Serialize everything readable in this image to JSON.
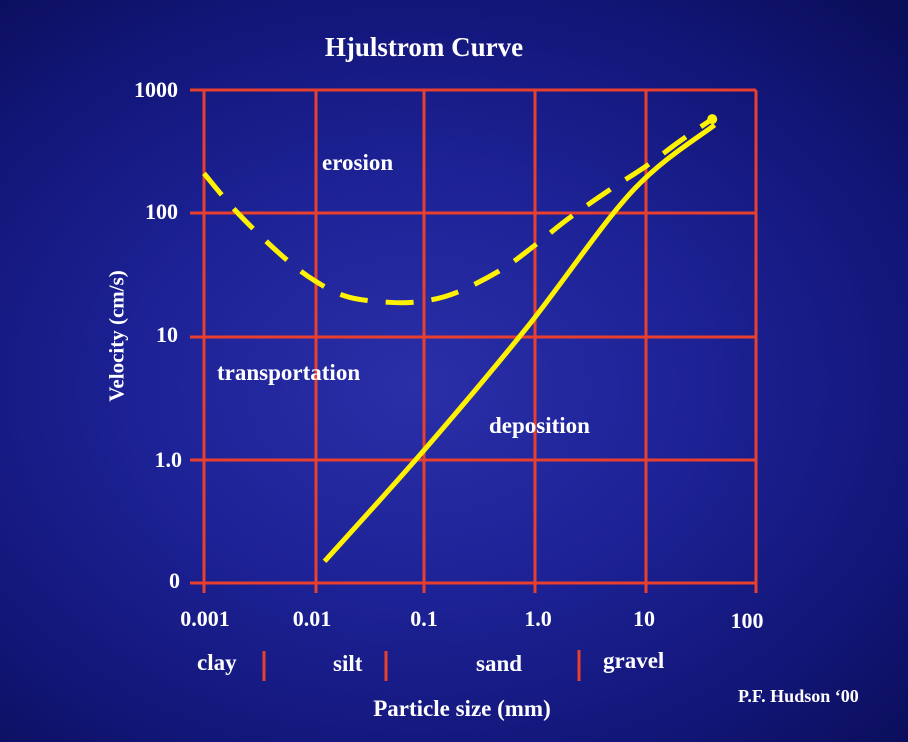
{
  "chart_data": {
    "type": "line",
    "title": "Hjulstrom Curve",
    "xlabel": "Particle size (mm)",
    "ylabel": "Velocity (cm/s)",
    "x_scale": "log",
    "y_scale": "log",
    "x_ticks": [
      "0.001",
      "0.01",
      "0.1",
      "1.0",
      "10",
      "100"
    ],
    "y_ticks": [
      "0",
      "1.0",
      "10",
      "100",
      "1000"
    ],
    "grid": true,
    "series": [
      {
        "style": "dashed",
        "points": [
          [
            0.001,
            210
          ],
          [
            0.002,
            100
          ],
          [
            0.005,
            45
          ],
          [
            0.01,
            28
          ],
          [
            0.02,
            21
          ],
          [
            0.05,
            19
          ],
          [
            0.1,
            19.5
          ],
          [
            0.2,
            23
          ],
          [
            0.5,
            35
          ],
          [
            1,
            55
          ],
          [
            2,
            90
          ],
          [
            5,
            160
          ],
          [
            10,
            240
          ],
          [
            20,
            380
          ],
          [
            40,
            580
          ]
        ]
      },
      {
        "style": "solid",
        "points": [
          [
            0.012,
            0.15
          ],
          [
            0.1,
            1.2
          ],
          [
            0.85,
            12
          ],
          [
            7.5,
            150
          ],
          [
            42,
            520
          ]
        ]
      }
    ],
    "annotations": [
      "erosion",
      "transportation",
      "deposition"
    ],
    "size_classes": [
      "clay",
      "silt",
      "sand",
      "gravel"
    ],
    "colors": {
      "grid": "#e8402e",
      "curves": "#fff200",
      "text": "#ffffff"
    }
  },
  "credit": "P.F. Hudson ‘00"
}
